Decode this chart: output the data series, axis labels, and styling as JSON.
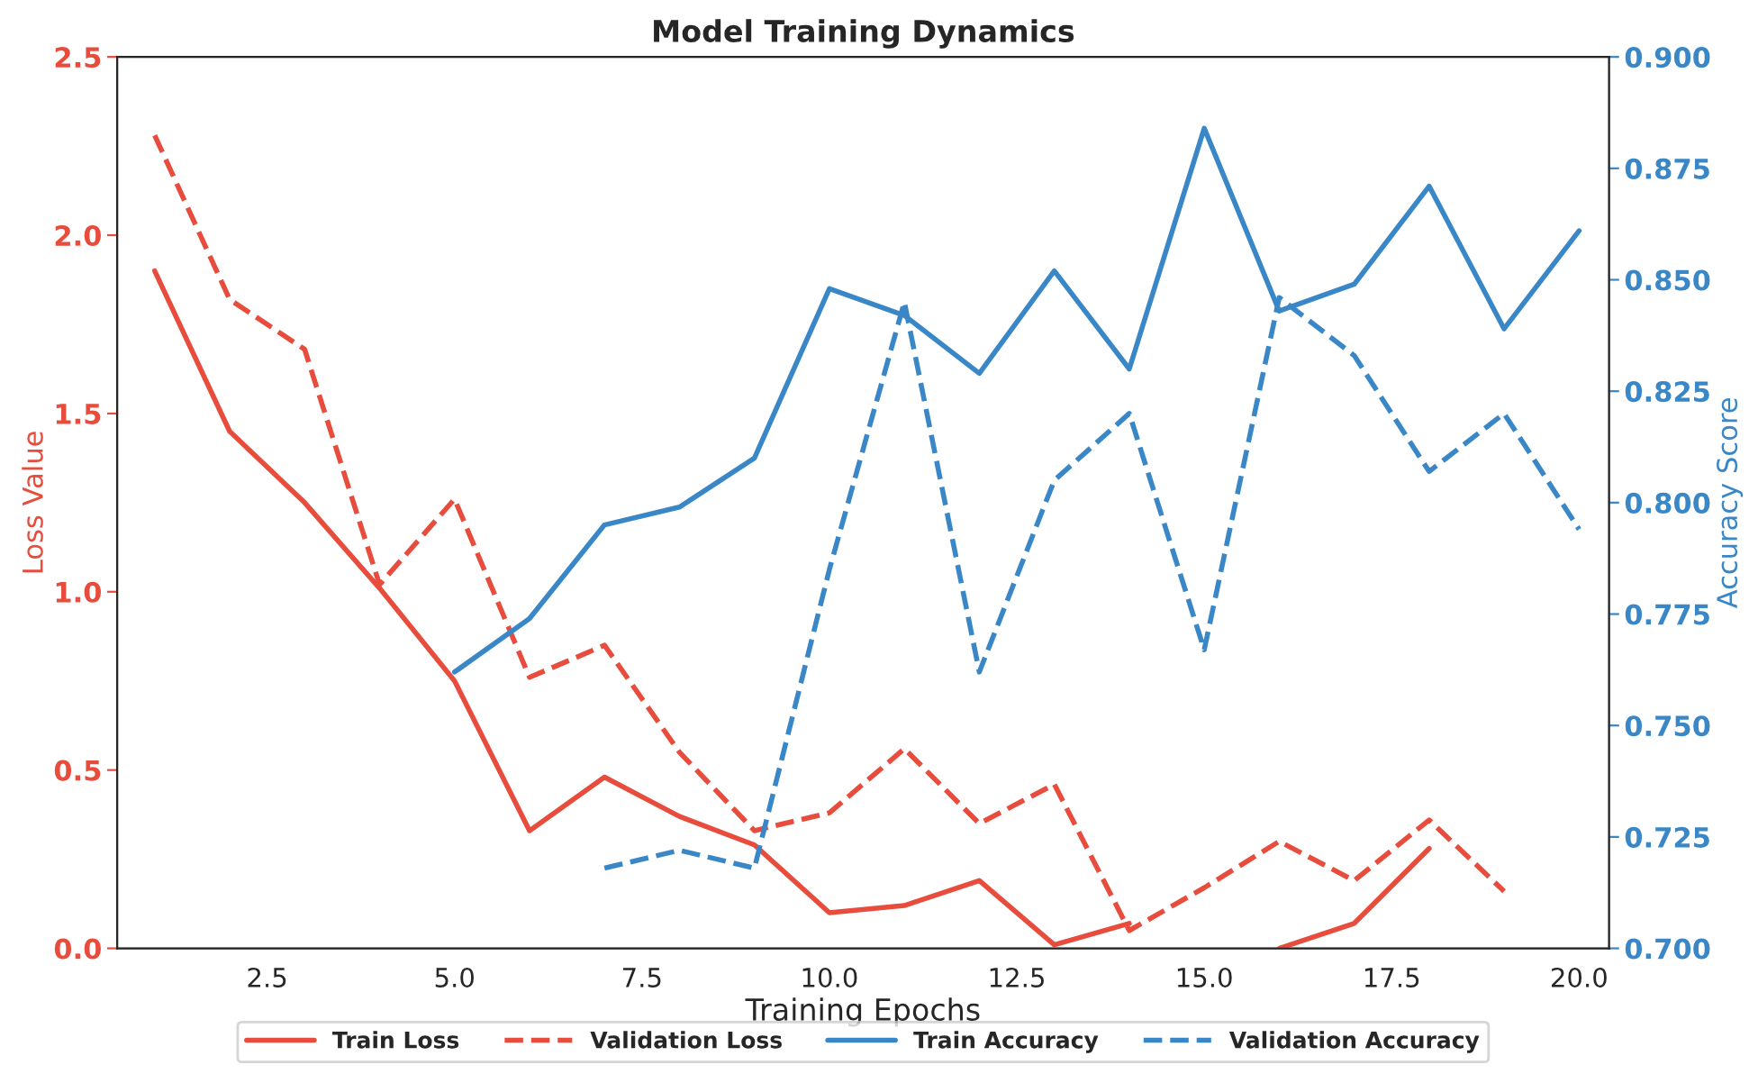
{
  "chart_data": {
    "type": "line",
    "title": "Model Training Dynamics",
    "xlabel": "Training Epochs",
    "ylabel": "Loss Value",
    "y2label": "Accuracy Score",
    "x": [
      1,
      2,
      3,
      4,
      5,
      6,
      7,
      8,
      9,
      10,
      11,
      12,
      13,
      14,
      15,
      16,
      17,
      18,
      19,
      20
    ],
    "xlim": [
      0.5,
      20.4
    ],
    "xticks": [
      {
        "value": 2.5,
        "label": "2.5"
      },
      {
        "value": 5,
        "label": "5.0"
      },
      {
        "value": 7.5,
        "label": "7.5"
      },
      {
        "value": 10,
        "label": "10.0"
      },
      {
        "value": 12.5,
        "label": "12.5"
      },
      {
        "value": 15,
        "label": "15.0"
      },
      {
        "value": 17.5,
        "label": "17.5"
      },
      {
        "value": 20,
        "label": "20.0"
      }
    ],
    "ylim": [
      0,
      2.5
    ],
    "yticks": [
      {
        "value": 0,
        "label": "0.0"
      },
      {
        "value": 0.5,
        "label": "0.5"
      },
      {
        "value": 1,
        "label": "1.0"
      },
      {
        "value": 1.5,
        "label": "1.5"
      },
      {
        "value": 2,
        "label": "2.0"
      },
      {
        "value": 2.5,
        "label": "2.5"
      }
    ],
    "y2lim": [
      0.7,
      0.9
    ],
    "y2ticks": [
      {
        "value": 0.7,
        "label": "0.700"
      },
      {
        "value": 0.725,
        "label": "0.725"
      },
      {
        "value": 0.75,
        "label": "0.750"
      },
      {
        "value": 0.775,
        "label": "0.775"
      },
      {
        "value": 0.8,
        "label": "0.800"
      },
      {
        "value": 0.825,
        "label": "0.825"
      },
      {
        "value": 0.85,
        "label": "0.850"
      },
      {
        "value": 0.875,
        "label": "0.875"
      },
      {
        "value": 0.9,
        "label": "0.900"
      }
    ],
    "grid": false,
    "legend": "bottom",
    "marker": "none",
    "series": [
      {
        "name": "Train Loss",
        "color": "#e74c3c",
        "line_style": "solid",
        "values": [
          1.9,
          1.45,
          1.25,
          1.01,
          0.75,
          0.33,
          0.48,
          0.37,
          0.29,
          0.1,
          0.12,
          0.19,
          0.01,
          0.07,
          null,
          0.0,
          0.07,
          0.28,
          null,
          null
        ]
      },
      {
        "name": "Validation Loss",
        "color": "#e74c3c",
        "line_style": "dashed",
        "values": [
          2.28,
          1.82,
          1.68,
          1.02,
          1.26,
          0.76,
          0.85,
          0.55,
          0.33,
          0.38,
          0.56,
          0.35,
          0.46,
          0.05,
          0.17,
          0.3,
          0.19,
          0.36,
          0.16,
          null
        ]
      },
      {
        "name": "Train Accuracy",
        "color": "#3a87c8",
        "line_style": "solid",
        "axis": "y2",
        "values": [
          null,
          null,
          null,
          null,
          0.762,
          0.774,
          0.795,
          0.799,
          0.81,
          0.848,
          0.842,
          0.829,
          0.852,
          0.83,
          0.884,
          0.843,
          0.849,
          0.871,
          0.839,
          0.861
        ]
      },
      {
        "name": "Validation Accuracy",
        "color": "#3a87c8",
        "line_style": "dashed",
        "axis": "y2",
        "values": [
          null,
          null,
          null,
          null,
          null,
          null,
          0.718,
          0.722,
          0.718,
          0.785,
          0.845,
          0.762,
          0.805,
          0.82,
          0.767,
          0.846,
          0.833,
          0.807,
          0.82,
          0.794
        ]
      }
    ]
  }
}
